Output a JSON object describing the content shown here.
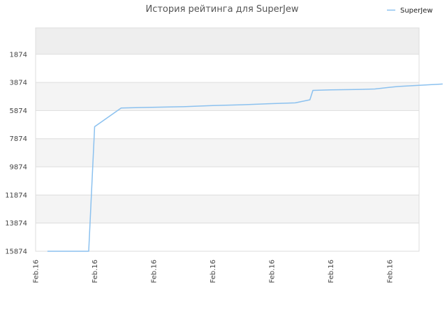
{
  "chart_data": {
    "type": "line",
    "title": "История рейтинга для SuperJew",
    "xlabel": "",
    "ylabel": "",
    "y_inverted": true,
    "ylim": [
      15874,
      0
    ],
    "y_ticks": [
      1874,
      3874,
      5874,
      7874,
      9874,
      11874,
      13874,
      15874
    ],
    "x_tick_labels": [
      "Feb.16",
      "Feb.16",
      "Feb.16",
      "Feb.16",
      "Feb.16",
      "Feb.16",
      "Feb.16",
      "Feb.16",
      "Feb.16",
      "Feb.16",
      "Feb.16",
      "Feb.16",
      "Feb.16",
      "Feb.16"
    ],
    "grid": true,
    "legend_position": "top-right",
    "colors": {
      "line": "#8bc1ef",
      "band_dark": "#eeeeee",
      "band_light": "#f4f4f4",
      "axis": "#dddddd"
    },
    "series": [
      {
        "name": "SuperJew",
        "points": [
          [
            0.4,
            15874
          ],
          [
            1.8,
            15874
          ],
          [
            2.0,
            7020
          ],
          [
            2.9,
            5690
          ],
          [
            3.5,
            5660
          ],
          [
            5.0,
            5600
          ],
          [
            6.0,
            5520
          ],
          [
            7.0,
            5460
          ],
          [
            8.0,
            5380
          ],
          [
            8.8,
            5330
          ],
          [
            9.3,
            5110
          ],
          [
            9.4,
            4440
          ],
          [
            10.0,
            4400
          ],
          [
            11.0,
            4370
          ],
          [
            11.5,
            4340
          ],
          [
            12.0,
            4220
          ],
          [
            12.3,
            4160
          ],
          [
            13.0,
            4080
          ],
          [
            13.8,
            3990
          ]
        ]
      }
    ]
  }
}
